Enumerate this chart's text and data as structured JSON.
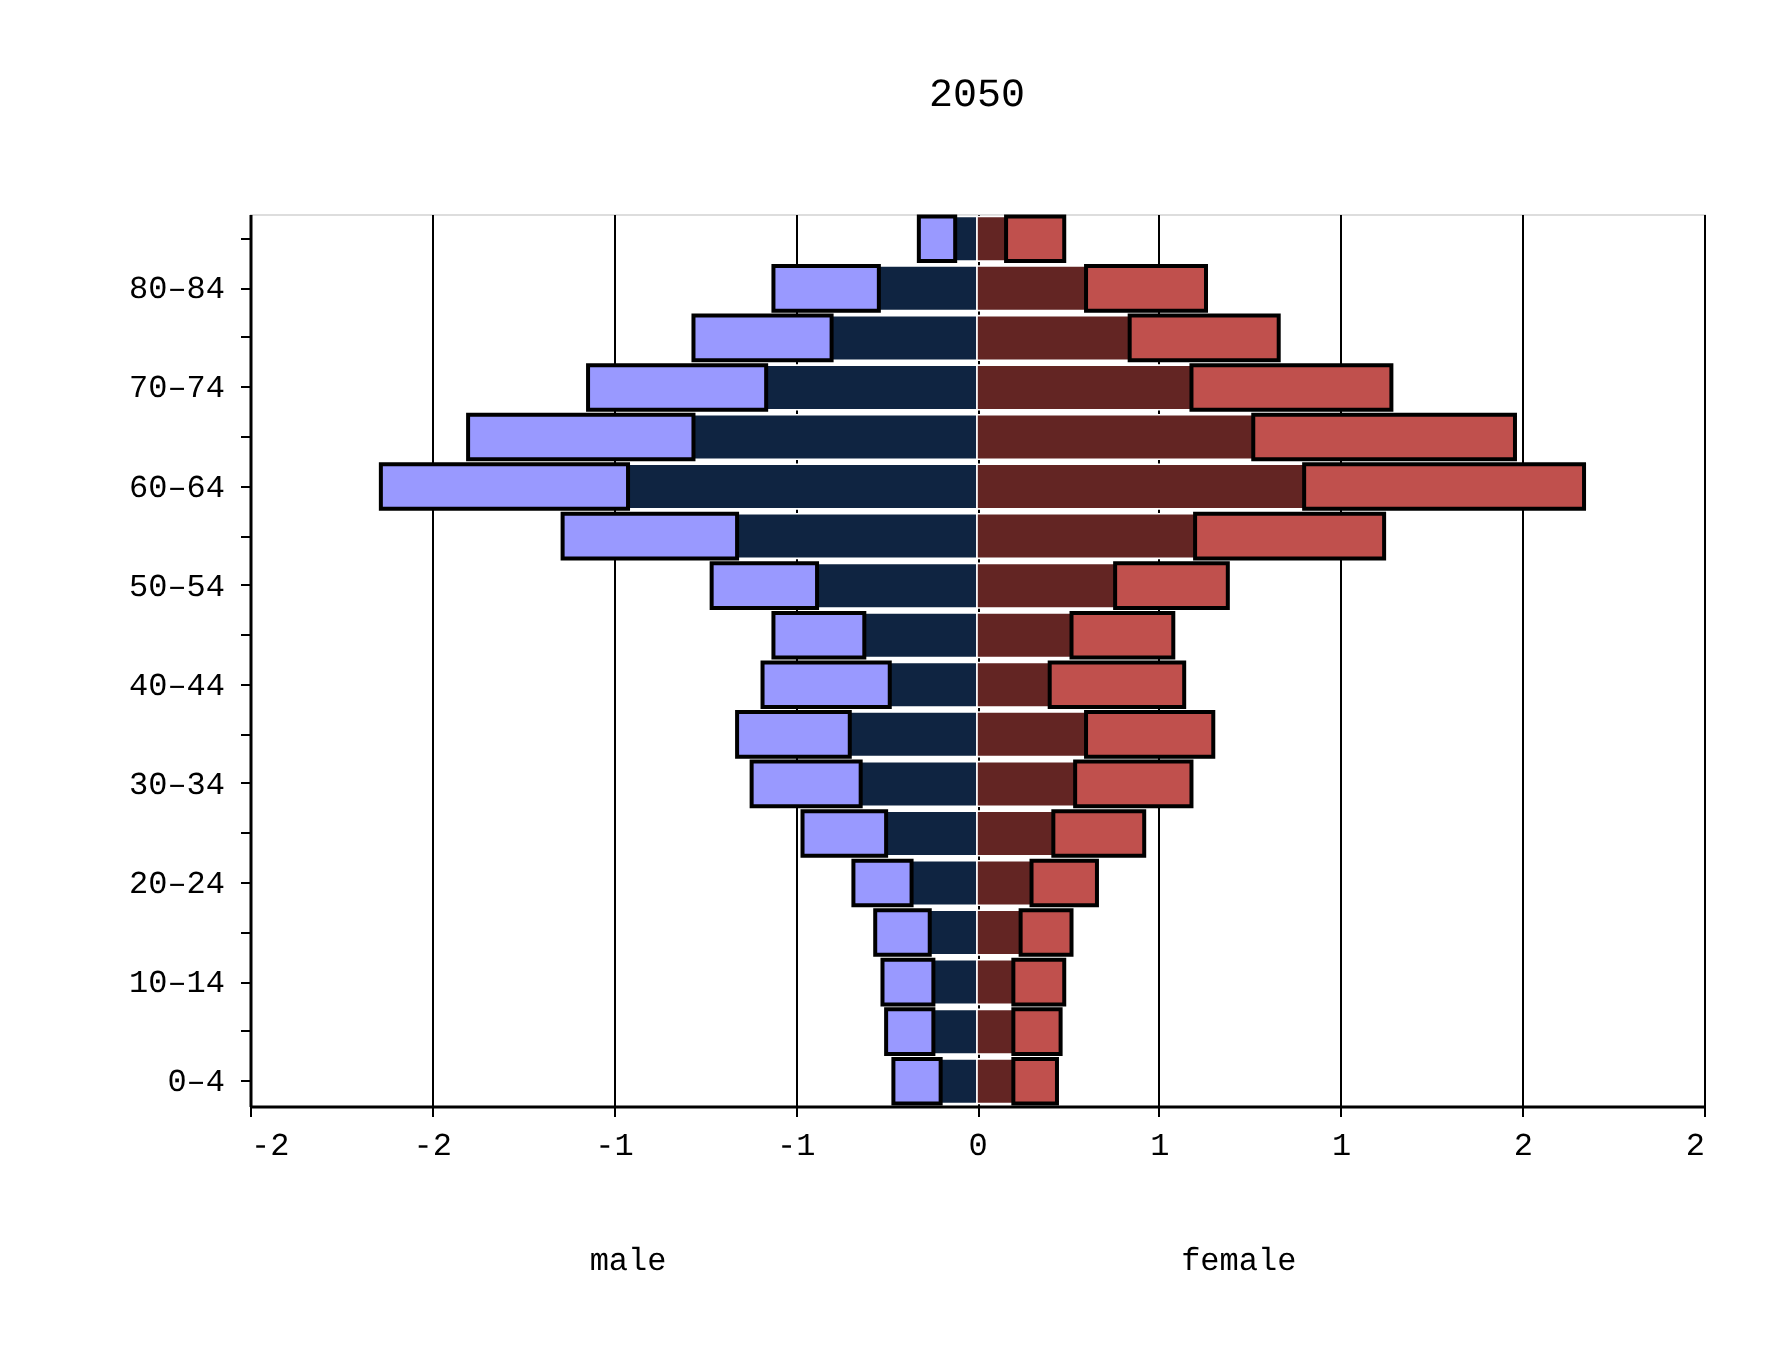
{
  "chart_data": {
    "type": "bar",
    "orientation": "horizontal",
    "stacked": true,
    "title": "2050",
    "categories": [
      null,
      "80–84",
      null,
      "70–74",
      null,
      "60–64",
      null,
      "50–54",
      null,
      "40–44",
      null,
      "30–34",
      null,
      "20–24",
      null,
      "10–14",
      null,
      "0–4"
    ],
    "series": [
      {
        "color": "#0f2441",
        "values": [
          -0.06,
          -0.27,
          -0.4,
          -0.58,
          -0.78,
          -0.96,
          -0.66,
          -0.44,
          -0.31,
          -0.24,
          -0.35,
          -0.32,
          -0.25,
          -0.18,
          -0.13,
          -0.12,
          -0.12,
          -0.1
        ]
      },
      {
        "color": "#9999ff",
        "values": [
          -0.1,
          -0.29,
          -0.38,
          -0.49,
          -0.62,
          -0.68,
          -0.48,
          -0.29,
          -0.25,
          -0.35,
          -0.31,
          -0.3,
          -0.23,
          -0.16,
          -0.15,
          -0.14,
          -0.13,
          -0.13
        ]
      },
      {
        "color": "#632523",
        "values": [
          0.08,
          0.3,
          0.42,
          0.59,
          0.76,
          0.9,
          0.6,
          0.38,
          0.26,
          0.2,
          0.3,
          0.27,
          0.21,
          0.15,
          0.12,
          0.1,
          0.1,
          0.1
        ]
      },
      {
        "color": "#c0504d",
        "values": [
          0.16,
          0.33,
          0.41,
          0.55,
          0.72,
          0.77,
          0.52,
          0.31,
          0.28,
          0.37,
          0.35,
          0.32,
          0.25,
          0.18,
          0.14,
          0.14,
          0.13,
          0.12
        ]
      }
    ],
    "xlim": [
      -2,
      2
    ],
    "xticks": [
      {
        "value": -2,
        "label": "-2"
      },
      {
        "value": -1.5,
        "label": "-2"
      },
      {
        "value": -1,
        "label": "-1"
      },
      {
        "value": -0.5,
        "label": "-1"
      },
      {
        "value": 0,
        "label": "0"
      },
      {
        "value": 0.5,
        "label": "1"
      },
      {
        "value": 1,
        "label": "1"
      },
      {
        "value": 1.5,
        "label": "2"
      },
      {
        "value": 2,
        "label": "2"
      }
    ],
    "annotations": [
      "male",
      "female"
    ],
    "grid": "x"
  }
}
